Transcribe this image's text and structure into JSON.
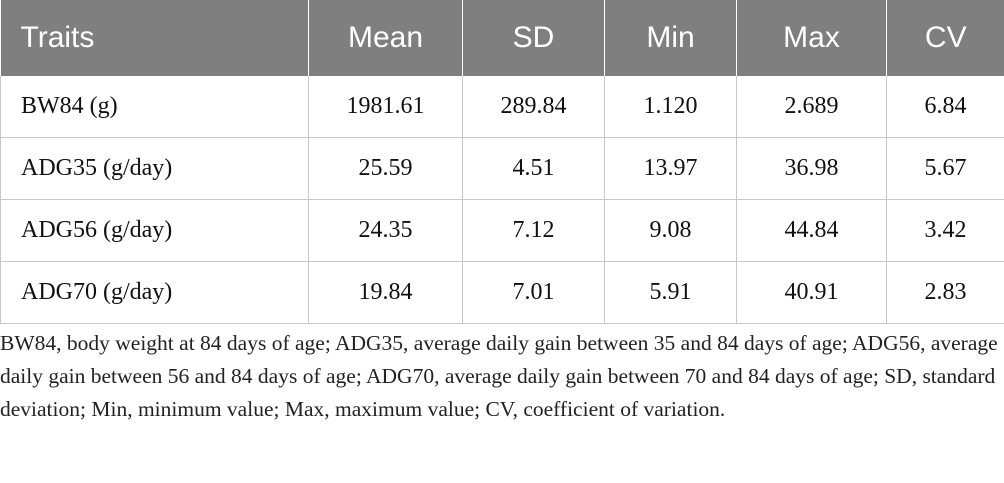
{
  "table": {
    "headers": [
      "Traits",
      "Mean",
      "SD",
      "Min",
      "Max",
      "CV"
    ],
    "rows": [
      [
        "BW84 (g)",
        "1981.61",
        "289.84",
        "1.120",
        "2.689",
        "6.84"
      ],
      [
        "ADG35 (g/day)",
        "25.59",
        "4.51",
        "13.97",
        "36.98",
        "5.67"
      ],
      [
        "ADG56 (g/day)",
        "24.35",
        "7.12",
        "9.08",
        "44.84",
        "3.42"
      ],
      [
        "ADG70 (g/day)",
        "19.84",
        "7.01",
        "5.91",
        "40.91",
        "2.83"
      ]
    ]
  },
  "footnote": "BW84, body weight at 84 days of age; ADG35, average daily gain between 35 and 84 days of age; ADG56, average daily gain between 56 and 84 days of age; ADG70, average daily gain between 70 and 84 days of age; SD, standard deviation; Min, minimum value; Max, maximum value; CV, coefficient of variation.",
  "colors": {
    "header_bg": "#7f7f7f",
    "header_text": "#ffffff",
    "grid": "#c8c8c8"
  }
}
